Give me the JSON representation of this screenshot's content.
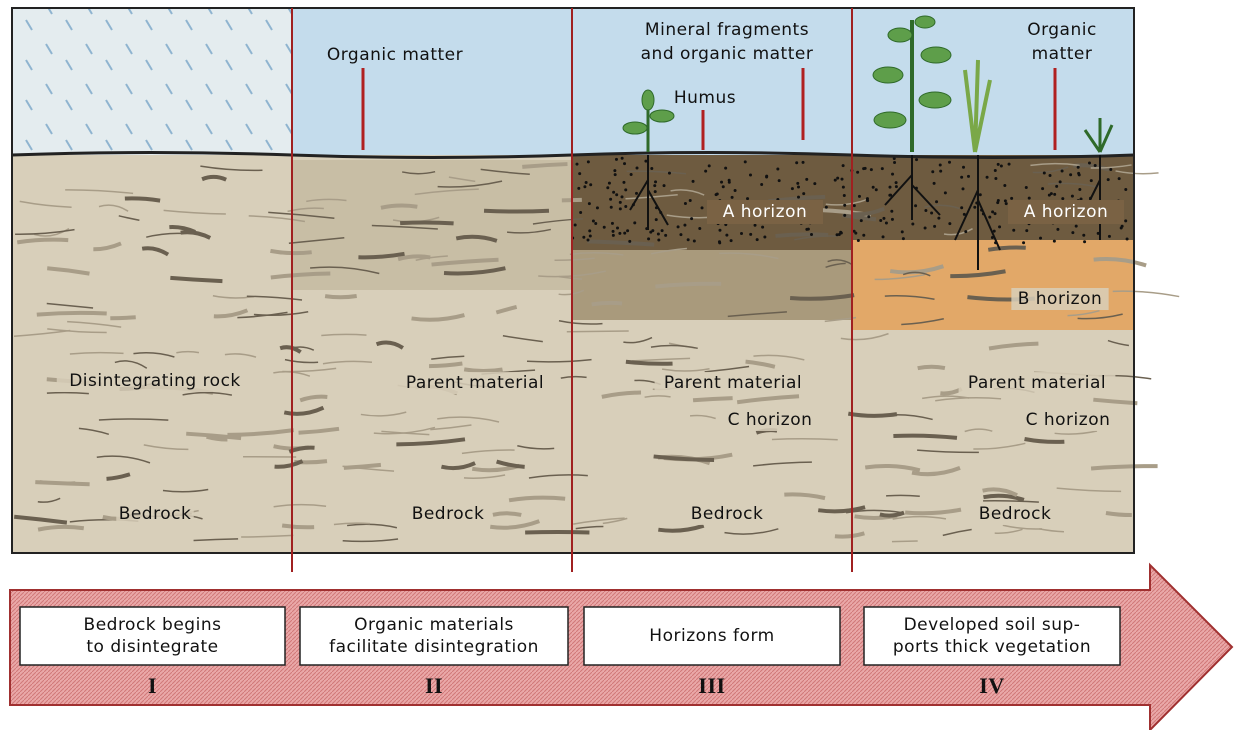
{
  "panels": [
    {
      "labels": [
        {
          "lines": [
            "Disintegrating rock"
          ]
        },
        {
          "lines": [
            "Bedrock"
          ]
        }
      ]
    },
    {
      "labels": [
        {
          "lines": [
            "Organic matter"
          ]
        },
        {
          "lines": [
            "Parent material"
          ]
        },
        {
          "lines": [
            "Bedrock"
          ]
        }
      ]
    },
    {
      "labels": [
        {
          "lines": [
            "Mineral fragments",
            "and organic matter"
          ]
        },
        {
          "lines": [
            "Humus"
          ]
        },
        {
          "lines": [
            "A horizon"
          ]
        },
        {
          "lines": [
            "Parent material"
          ]
        },
        {
          "lines": [
            "C horizon"
          ]
        },
        {
          "lines": [
            "Bedrock"
          ]
        }
      ]
    },
    {
      "labels": [
        {
          "lines": [
            "Organic",
            "matter"
          ]
        },
        {
          "lines": [
            "A horizon"
          ]
        },
        {
          "lines": [
            "B horizon"
          ]
        },
        {
          "lines": [
            "Parent material"
          ]
        },
        {
          "lines": [
            "C horizon"
          ]
        },
        {
          "lines": [
            "Bedrock"
          ]
        }
      ]
    }
  ],
  "stages": [
    {
      "lines": [
        "Bedrock begins",
        "to disintegrate"
      ],
      "numeral": "I"
    },
    {
      "lines": [
        "Organic materials",
        "facilitate disintegration"
      ],
      "numeral": "II"
    },
    {
      "lines": [
        "Horizons form"
      ],
      "numeral": "III"
    },
    {
      "lines": [
        "Developed soil sup-",
        "ports thick vegetation"
      ],
      "numeral": "IV"
    }
  ]
}
